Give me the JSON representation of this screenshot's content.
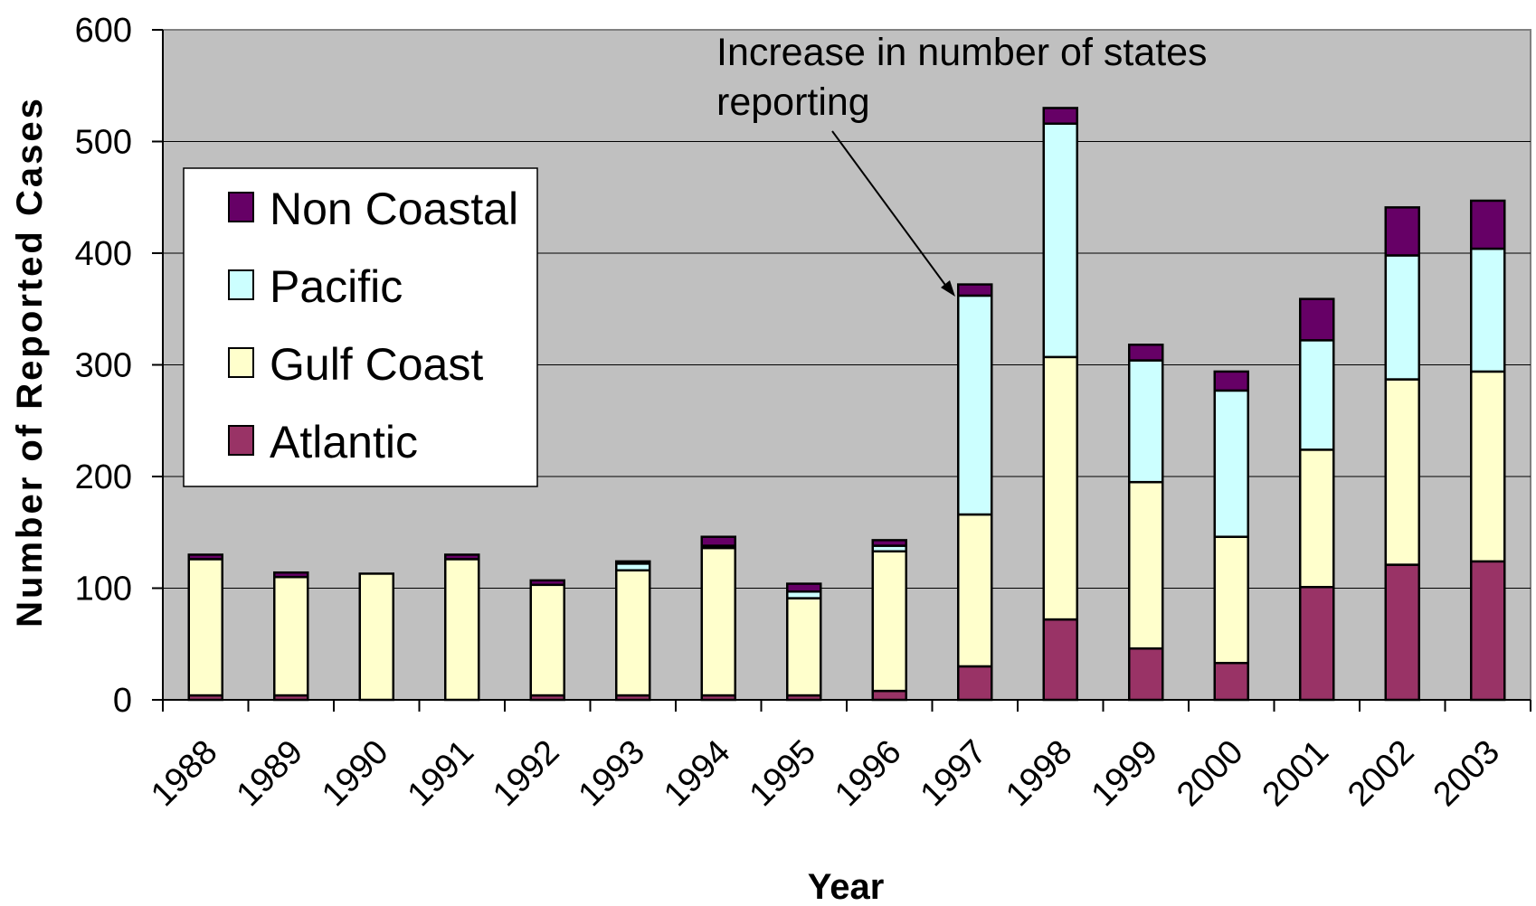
{
  "chart_data": {
    "type": "bar",
    "stacked": true,
    "title": "",
    "xlabel": "Year",
    "ylabel": "Number of Reported Cases",
    "ylim": [
      0,
      600
    ],
    "yticks": [
      "0",
      "100",
      "200",
      "300",
      "400",
      "500",
      "600"
    ],
    "grid": true,
    "legend_position": "left",
    "categories": [
      "1988",
      "1989",
      "1990",
      "1991",
      "1992",
      "1993",
      "1994",
      "1995",
      "1996",
      "1997",
      "1998",
      "1999",
      "2000",
      "2001",
      "2002",
      "2003"
    ],
    "series": [
      {
        "name": "Atlantic",
        "color": "#993366",
        "values": [
          4,
          4,
          0,
          0,
          4,
          4,
          4,
          4,
          8,
          30,
          72,
          46,
          33,
          101,
          121,
          124
        ]
      },
      {
        "name": "Gulf Coast",
        "color": "#FFFFCC",
        "values": [
          122,
          106,
          113,
          126,
          99,
          112,
          132,
          87,
          125,
          136,
          235,
          149,
          113,
          123,
          166,
          170
        ]
      },
      {
        "name": "Pacific",
        "color": "#CCFFFF",
        "values": [
          0,
          0,
          0,
          0,
          0,
          6,
          2,
          6,
          5,
          196,
          209,
          109,
          131,
          98,
          111,
          110
        ]
      },
      {
        "name": "Non Coastal",
        "color": "#660066",
        "values": [
          4,
          4,
          0,
          4,
          4,
          2,
          8,
          7,
          5,
          10,
          14,
          14,
          17,
          37,
          43,
          43
        ]
      }
    ],
    "legend_order": [
      "Non Coastal",
      "Pacific",
      "Gulf Coast",
      "Atlantic"
    ],
    "annotation": {
      "lines": [
        "Increase in number of states",
        "reporting"
      ],
      "target_category": "1997"
    },
    "plot_background": "#C0C0C0"
  }
}
